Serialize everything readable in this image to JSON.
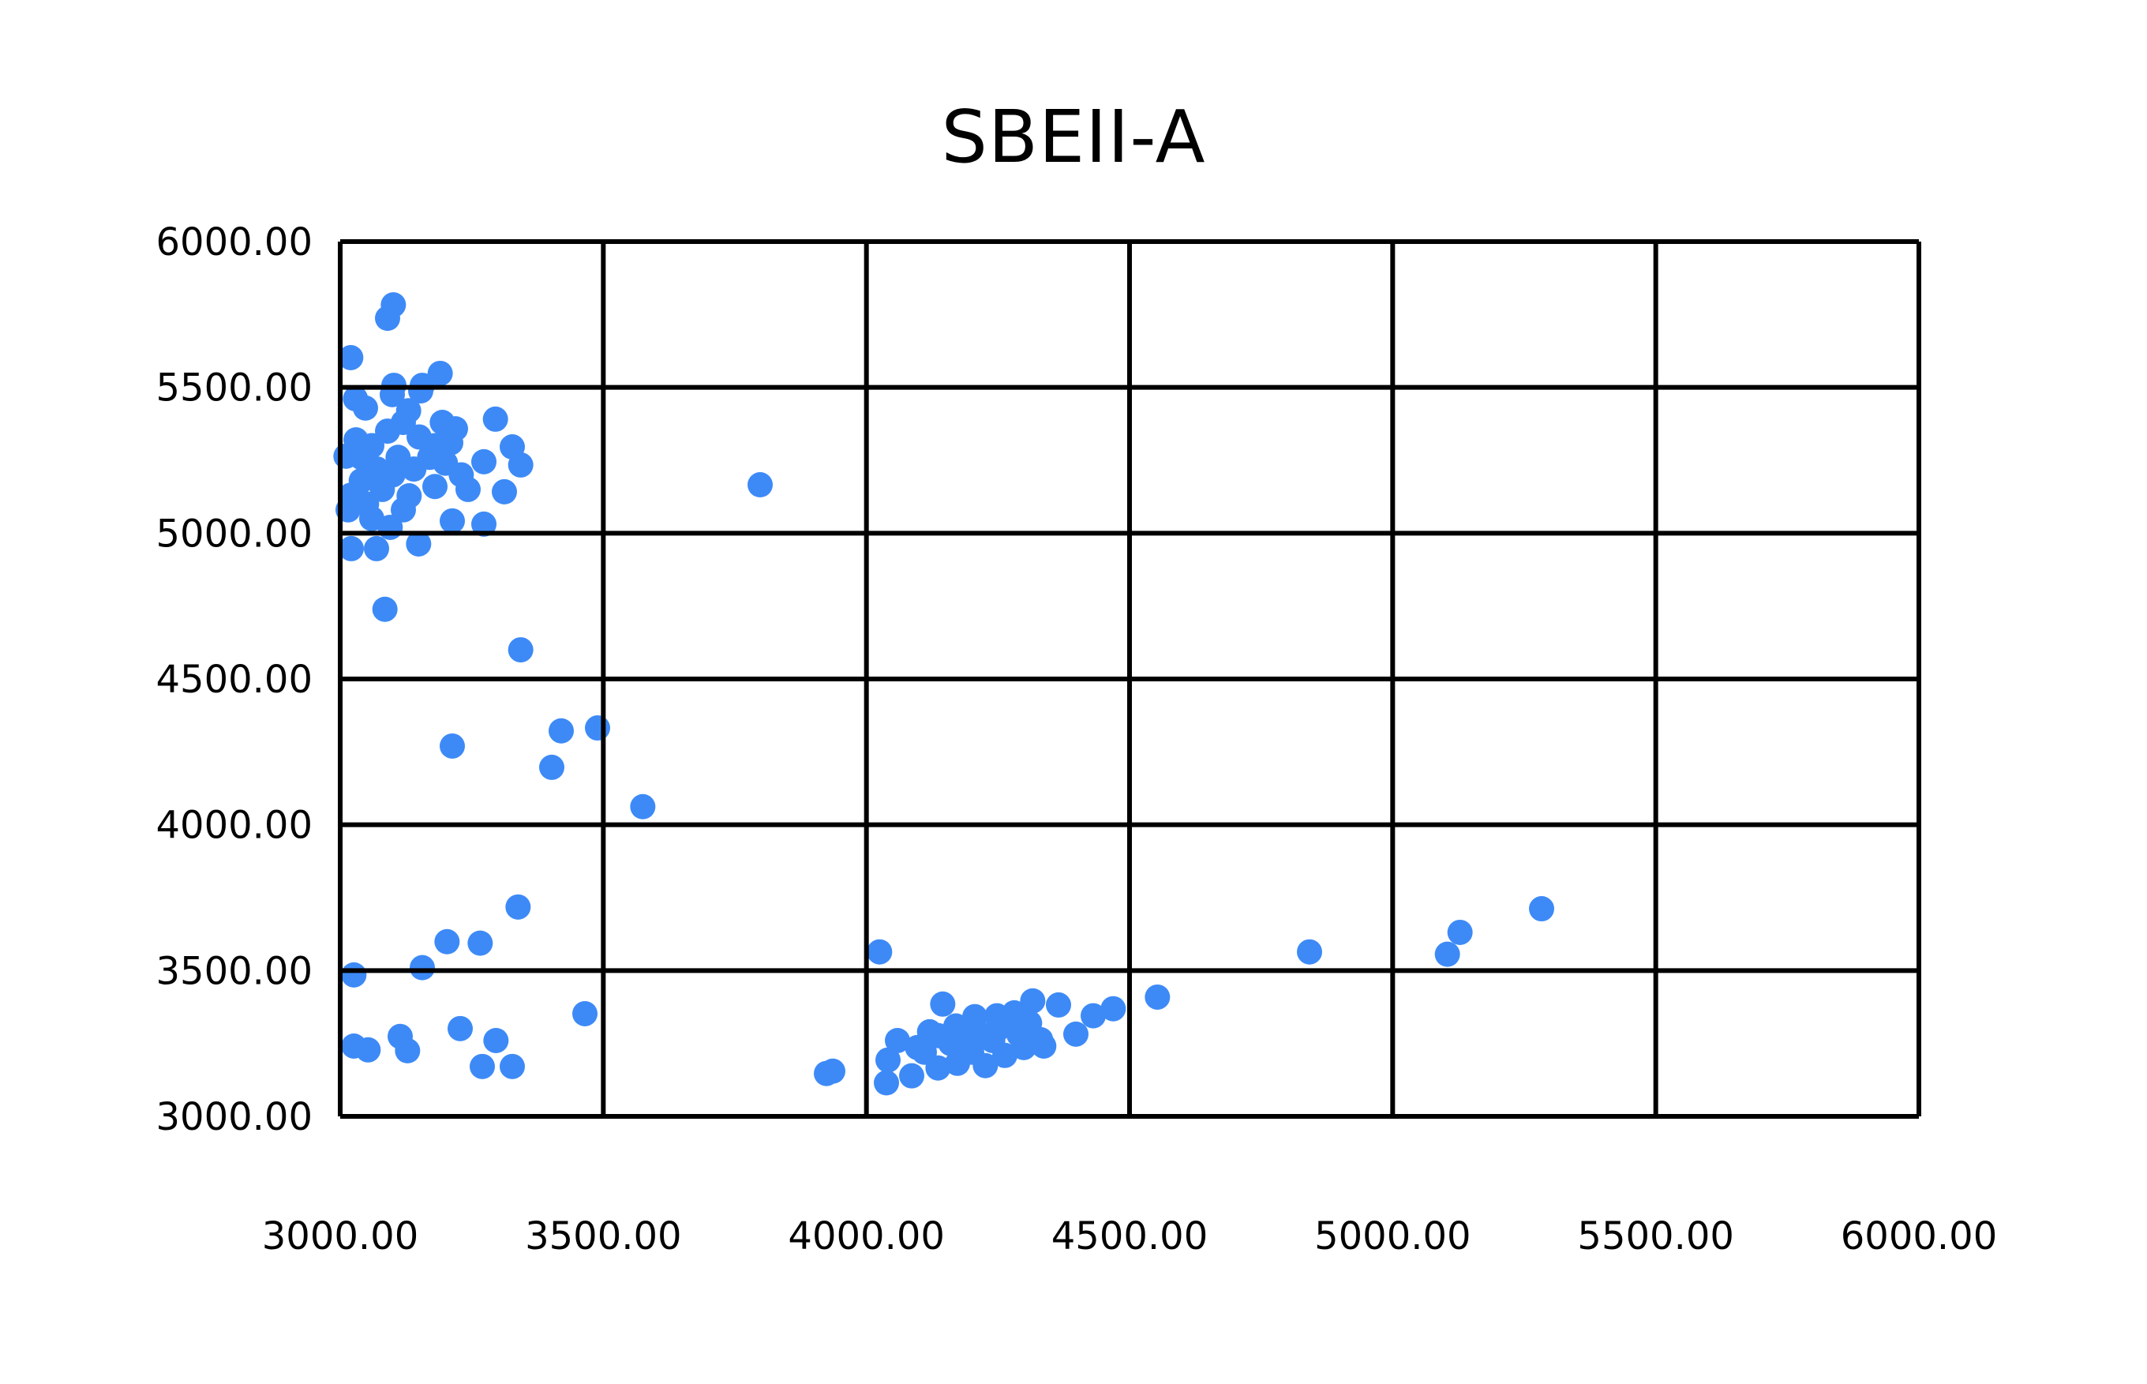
{
  "chart_data": {
    "type": "scatter",
    "title": "SBEII-A",
    "xlabel": "",
    "ylabel": "",
    "xlim": [
      3000,
      6000
    ],
    "ylim": [
      3000,
      6000
    ],
    "x_ticks": [
      "3000.00",
      "3500.00",
      "4000.00",
      "4500.00",
      "5000.00",
      "5500.00",
      "6000.00"
    ],
    "y_ticks": [
      "3000.00",
      "3500.00",
      "4000.00",
      "4500.00",
      "5000.00",
      "5500.00",
      "6000.00"
    ],
    "grid": true,
    "legend": null,
    "marker_color": "#3d8af7",
    "series": [
      {
        "name": "SBEII-A",
        "points": [
          [
            3101,
            5783
          ],
          [
            3090,
            5737
          ],
          [
            3020,
            5602
          ],
          [
            3102,
            5507
          ],
          [
            3156,
            5507
          ],
          [
            3190,
            5548
          ],
          [
            3295,
            5391
          ],
          [
            3327,
            5296
          ],
          [
            3343,
            5234
          ],
          [
            3273,
            5245
          ],
          [
            3312,
            5142
          ],
          [
            3273,
            5031
          ],
          [
            3219,
            5358
          ],
          [
            3194,
            5380
          ],
          [
            3243,
            5150
          ],
          [
            3213,
            5042
          ],
          [
            3131,
            5128
          ],
          [
            3149,
            4963
          ],
          [
            3029,
            5461
          ],
          [
            3048,
            5429
          ],
          [
            3099,
            5475
          ],
          [
            3153,
            5488
          ],
          [
            3011,
            5264
          ],
          [
            3021,
            4947
          ],
          [
            3069,
            4947
          ],
          [
            3030,
            5320
          ],
          [
            3060,
            5300
          ],
          [
            3090,
            5350
          ],
          [
            3120,
            5380
          ],
          [
            3150,
            5330
          ],
          [
            3180,
            5300
          ],
          [
            3110,
            5260
          ],
          [
            3070,
            5220
          ],
          [
            3040,
            5180
          ],
          [
            3020,
            5130
          ],
          [
            3015,
            5080
          ],
          [
            3050,
            5100
          ],
          [
            3080,
            5150
          ],
          [
            3100,
            5200
          ],
          [
            3140,
            5220
          ],
          [
            3170,
            5260
          ],
          [
            3200,
            5240
          ],
          [
            3230,
            5200
          ],
          [
            3060,
            5050
          ],
          [
            3095,
            5020
          ],
          [
            3120,
            5080
          ],
          [
            3180,
            5160
          ],
          [
            3040,
            5260
          ],
          [
            3130,
            5420
          ],
          [
            3210,
            5310
          ],
          [
            3085,
            4739
          ],
          [
            3343,
            4600
          ],
          [
            3213,
            4270
          ],
          [
            3420,
            4322
          ],
          [
            3402,
            4197
          ],
          [
            3489,
            4332
          ],
          [
            3575,
            4062
          ],
          [
            3798,
            5166
          ],
          [
            3338,
            3718
          ],
          [
            3203,
            3599
          ],
          [
            3266,
            3594
          ],
          [
            3156,
            3510
          ],
          [
            3026,
            3485
          ],
          [
            3465,
            3352
          ],
          [
            3026,
            3241
          ],
          [
            3053,
            3228
          ],
          [
            3114,
            3274
          ],
          [
            3128,
            3225
          ],
          [
            3228,
            3301
          ],
          [
            3296,
            3260
          ],
          [
            3270,
            3171
          ],
          [
            3327,
            3171
          ],
          [
            4025,
            3564
          ],
          [
            3924,
            3147
          ],
          [
            3936,
            3155
          ],
          [
            4553,
            3409
          ],
          [
            4038,
            3115
          ],
          [
            4041,
            3193
          ],
          [
            4059,
            3260
          ],
          [
            4086,
            3139
          ],
          [
            4097,
            3236
          ],
          [
            4145,
            3385
          ],
          [
            4136,
            3166
          ],
          [
            4136,
            3277
          ],
          [
            4173,
            3182
          ],
          [
            4206,
            3342
          ],
          [
            4226,
            3174
          ],
          [
            4248,
            3345
          ],
          [
            4263,
            3209
          ],
          [
            4281,
            3355
          ],
          [
            4299,
            3236
          ],
          [
            4316,
            3396
          ],
          [
            4331,
            3263
          ],
          [
            4365,
            3382
          ],
          [
            4431,
            3345
          ],
          [
            4469,
            3369
          ],
          [
            4398,
            3282
          ],
          [
            4337,
            3241
          ],
          [
            4160,
            3250
          ],
          [
            4190,
            3290
          ],
          [
            4220,
            3280
          ],
          [
            4250,
            3300
          ],
          [
            4280,
            3310
          ],
          [
            4310,
            3320
          ],
          [
            4110,
            3220
          ],
          [
            4200,
            3220
          ],
          [
            4240,
            3260
          ],
          [
            4120,
            3290
          ],
          [
            4170,
            3310
          ],
          [
            4290,
            3280
          ],
          [
            4842,
            3564
          ],
          [
            5104,
            3556
          ],
          [
            5128,
            3631
          ],
          [
            5283,
            3712
          ]
        ]
      }
    ]
  }
}
